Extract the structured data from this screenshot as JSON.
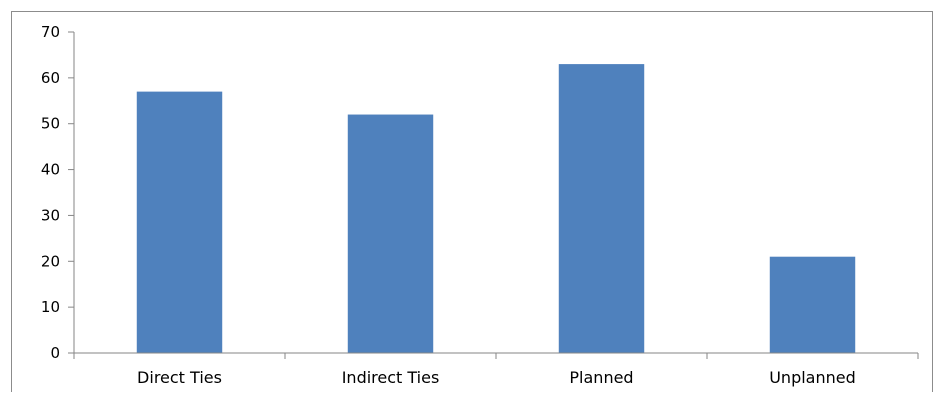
{
  "chart_data": {
    "type": "bar",
    "categories": [
      "Direct Ties",
      "Indirect Ties",
      "Planned",
      "Unplanned"
    ],
    "values": [
      57,
      52,
      63,
      21
    ],
    "title": "",
    "xlabel": "",
    "ylabel": "",
    "ylim": [
      0,
      70
    ],
    "yticks": [
      0,
      10,
      20,
      30,
      40,
      50,
      60,
      70
    ],
    "grid": false,
    "legend": "none",
    "bar_color": "#4f81bd",
    "axis_color": "#868686"
  }
}
